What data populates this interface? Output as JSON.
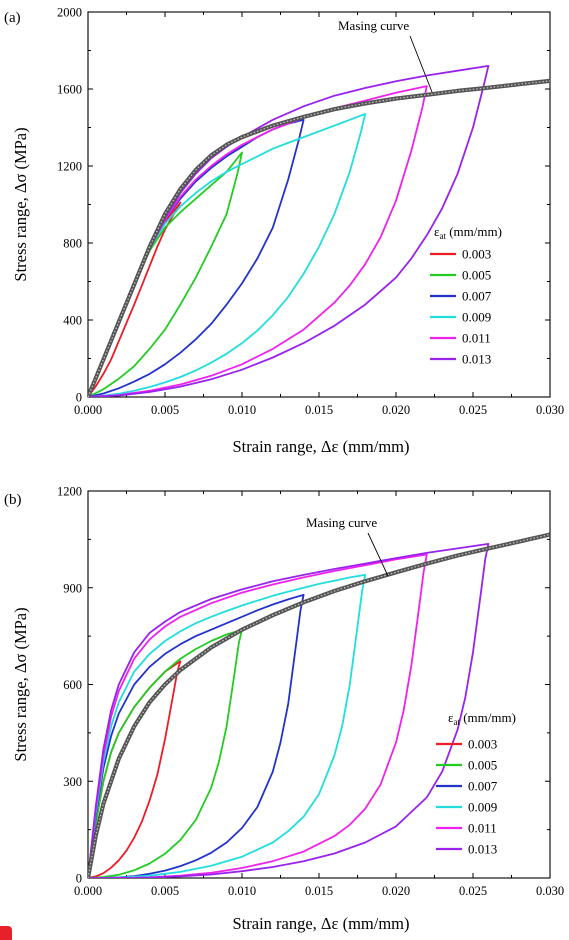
{
  "figure": {
    "marker_color": "#e8202a"
  },
  "chart_data": [
    {
      "type": "line",
      "panel_label": "(a)",
      "xlabel": "Strain range, Δε (mm/mm)",
      "ylabel": "Stress range, Δσ (MPa)",
      "xlim": [
        0,
        0.03
      ],
      "ylim": [
        0,
        2000
      ],
      "xticks": [
        "0.000",
        "0.005",
        "0.010",
        "0.015",
        "0.020",
        "0.025",
        "0.030"
      ],
      "yticks": [
        "0",
        "400",
        "800",
        "1200",
        "1600",
        "2000"
      ],
      "xtick_values": [
        0,
        0.005,
        0.01,
        0.015,
        0.02,
        0.025,
        0.03
      ],
      "ytick_values": [
        0,
        400,
        800,
        1200,
        1600,
        2000
      ],
      "legend_title": "ε",
      "legend_title_sub": "at",
      "legend_title_unit": " (mm/mm)",
      "legend_position": "right",
      "annotation": "Masing curve",
      "masing_curve": {
        "color": "#555555",
        "x": [
          0,
          0.001,
          0.002,
          0.003,
          0.004,
          0.005,
          0.006,
          0.007,
          0.008,
          0.009,
          0.01,
          0.012,
          0.014,
          0.016,
          0.018,
          0.02,
          0.022,
          0.024,
          0.026,
          0.028,
          0.03
        ],
        "y": [
          0,
          195,
          390,
          585,
          780,
          950,
          1080,
          1180,
          1255,
          1310,
          1350,
          1410,
          1455,
          1495,
          1525,
          1550,
          1570,
          1590,
          1607,
          1625,
          1642
        ]
      },
      "series": [
        {
          "name": "0.003",
          "color": "#ee1c24",
          "x": [
            0,
            0.001,
            0.002,
            0.003,
            0.004,
            0.005,
            0.006,
            0.0055,
            0.005,
            0.0045,
            0.004,
            0.0035,
            0.003,
            0.0025,
            0.002,
            0.0015,
            0.001,
            0.0005,
            0
          ],
          "y": [
            0,
            195,
            390,
            585,
            770,
            910,
            1010,
            940,
            870,
            780,
            680,
            580,
            480,
            385,
            290,
            195,
            120,
            55,
            0
          ]
        },
        {
          "name": "0.005",
          "color": "#22cc22",
          "x": [
            0,
            0.001,
            0.002,
            0.003,
            0.004,
            0.005,
            0.006,
            0.007,
            0.008,
            0.009,
            0.01,
            0.0097,
            0.009,
            0.008,
            0.007,
            0.006,
            0.005,
            0.004,
            0.003,
            0.002,
            0.001,
            0
          ],
          "y": [
            0,
            195,
            390,
            580,
            760,
            880,
            960,
            1030,
            1100,
            1170,
            1270,
            1160,
            950,
            780,
            620,
            480,
            350,
            250,
            160,
            95,
            40,
            0
          ]
        },
        {
          "name": "0.007",
          "color": "#2233cc",
          "x": [
            0,
            0.001,
            0.002,
            0.003,
            0.004,
            0.005,
            0.006,
            0.007,
            0.008,
            0.009,
            0.01,
            0.011,
            0.012,
            0.013,
            0.014,
            0.0137,
            0.013,
            0.012,
            0.011,
            0.01,
            0.009,
            0.008,
            0.007,
            0.006,
            0.005,
            0.004,
            0.003,
            0.002,
            0.001,
            0
          ],
          "y": [
            0,
            195,
            390,
            580,
            770,
            920,
            1030,
            1120,
            1190,
            1250,
            1300,
            1350,
            1390,
            1420,
            1440,
            1340,
            1130,
            880,
            720,
            590,
            480,
            380,
            300,
            230,
            170,
            120,
            80,
            45,
            18,
            0
          ]
        },
        {
          "name": "0.009",
          "color": "#22dddd",
          "x": [
            0,
            0.001,
            0.002,
            0.003,
            0.004,
            0.005,
            0.006,
            0.007,
            0.008,
            0.009,
            0.01,
            0.011,
            0.012,
            0.013,
            0.014,
            0.015,
            0.016,
            0.017,
            0.018,
            0.0177,
            0.017,
            0.016,
            0.015,
            0.014,
            0.013,
            0.012,
            0.011,
            0.01,
            0.009,
            0.008,
            0.007,
            0.006,
            0.005,
            0.004,
            0.003,
            0.002,
            0.001,
            0
          ],
          "y": [
            0,
            195,
            390,
            580,
            770,
            900,
            990,
            1060,
            1120,
            1170,
            1210,
            1250,
            1290,
            1320,
            1350,
            1380,
            1410,
            1440,
            1470,
            1370,
            1170,
            950,
            780,
            640,
            520,
            425,
            345,
            280,
            225,
            178,
            138,
            104,
            76,
            52,
            32,
            17,
            6,
            0
          ]
        },
        {
          "name": "0.011",
          "color": "#ee22ee",
          "x": [
            0,
            0.001,
            0.002,
            0.003,
            0.004,
            0.005,
            0.006,
            0.007,
            0.008,
            0.009,
            0.01,
            0.012,
            0.014,
            0.016,
            0.018,
            0.02,
            0.022,
            0.0217,
            0.021,
            0.02,
            0.019,
            0.018,
            0.017,
            0.016,
            0.014,
            0.012,
            0.01,
            0.008,
            0.006,
            0.004,
            0.002,
            0
          ],
          "y": [
            0,
            195,
            390,
            580,
            770,
            920,
            1040,
            1130,
            1200,
            1260,
            1310,
            1390,
            1450,
            1500,
            1540,
            1580,
            1615,
            1500,
            1280,
            1020,
            830,
            690,
            580,
            490,
            350,
            250,
            170,
            110,
            65,
            32,
            10,
            0
          ]
        },
        {
          "name": "0.013",
          "color": "#9922ee",
          "x": [
            0,
            0.001,
            0.002,
            0.003,
            0.004,
            0.005,
            0.006,
            0.007,
            0.008,
            0.009,
            0.01,
            0.012,
            0.014,
            0.016,
            0.018,
            0.02,
            0.022,
            0.024,
            0.026,
            0.0257,
            0.025,
            0.024,
            0.023,
            0.022,
            0.021,
            0.02,
            0.018,
            0.016,
            0.014,
            0.012,
            0.01,
            0.008,
            0.006,
            0.004,
            0.002,
            0
          ],
          "y": [
            0,
            195,
            390,
            580,
            770,
            930,
            1060,
            1160,
            1240,
            1300,
            1350,
            1440,
            1510,
            1565,
            1605,
            1640,
            1670,
            1695,
            1720,
            1620,
            1400,
            1160,
            980,
            840,
            720,
            620,
            480,
            370,
            280,
            205,
            142,
            92,
            54,
            26,
            8,
            0
          ]
        }
      ]
    },
    {
      "type": "line",
      "panel_label": "(b)",
      "xlabel": "Strain range, Δε (mm/mm)",
      "ylabel": "Stress range, Δσ (MPa)",
      "xlim": [
        0,
        0.03
      ],
      "ylim": [
        0,
        1200
      ],
      "xticks": [
        "0.000",
        "0.005",
        "0.010",
        "0.015",
        "0.020",
        "0.025",
        "0.030"
      ],
      "yticks": [
        "0",
        "300",
        "600",
        "900",
        "1200"
      ],
      "xtick_values": [
        0,
        0.005,
        0.01,
        0.015,
        0.02,
        0.025,
        0.03
      ],
      "ytick_values": [
        0,
        300,
        600,
        900,
        1200
      ],
      "legend_title": "ε",
      "legend_title_sub": "at",
      "legend_title_unit": " (mm/mm)",
      "legend_position": "right",
      "annotation": "Masing curve",
      "masing_curve": {
        "color": "#555555",
        "x": [
          0,
          0.0005,
          0.001,
          0.002,
          0.003,
          0.004,
          0.005,
          0.006,
          0.008,
          0.01,
          0.012,
          0.014,
          0.016,
          0.018,
          0.02,
          0.022,
          0.024,
          0.026,
          0.028,
          0.03
        ],
        "y": [
          0,
          130,
          230,
          370,
          470,
          545,
          600,
          645,
          715,
          770,
          815,
          855,
          890,
          920,
          948,
          975,
          1000,
          1022,
          1043,
          1065
        ]
      },
      "series": [
        {
          "name": "0.003",
          "color": "#ee1c24",
          "x": [
            0,
            0.0005,
            0.001,
            0.0015,
            0.002,
            0.003,
            0.004,
            0.005,
            0.006,
            0.0058,
            0.0055,
            0.005,
            0.0045,
            0.004,
            0.0035,
            0.003,
            0.0025,
            0.002,
            0.0015,
            0.001,
            0.0005,
            0
          ],
          "y": [
            0,
            170,
            300,
            390,
            450,
            530,
            590,
            640,
            672,
            640,
            560,
            430,
            320,
            240,
            175,
            125,
            85,
            55,
            32,
            15,
            5,
            0
          ]
        },
        {
          "name": "0.005",
          "color": "#22cc22",
          "x": [
            0,
            0.0005,
            0.001,
            0.0015,
            0.002,
            0.003,
            0.004,
            0.005,
            0.006,
            0.007,
            0.008,
            0.009,
            0.01,
            0.0098,
            0.0095,
            0.009,
            0.0085,
            0.008,
            0.007,
            0.006,
            0.005,
            0.004,
            0.003,
            0.002,
            0.001,
            0
          ],
          "y": [
            0,
            170,
            300,
            390,
            450,
            530,
            590,
            640,
            680,
            710,
            735,
            755,
            770,
            730,
            630,
            470,
            360,
            280,
            180,
            118,
            75,
            45,
            24,
            10,
            3,
            0
          ]
        },
        {
          "name": "0.007",
          "color": "#2233cc",
          "x": [
            0,
            0.0005,
            0.001,
            0.0015,
            0.002,
            0.003,
            0.004,
            0.005,
            0.006,
            0.007,
            0.008,
            0.009,
            0.01,
            0.011,
            0.012,
            0.013,
            0.014,
            0.0138,
            0.0135,
            0.013,
            0.0125,
            0.012,
            0.011,
            0.01,
            0.009,
            0.008,
            0.007,
            0.006,
            0.005,
            0.004,
            0.003,
            0.002,
            0.001,
            0
          ],
          "y": [
            0,
            190,
            340,
            440,
            510,
            600,
            655,
            695,
            725,
            750,
            770,
            790,
            810,
            830,
            848,
            864,
            878,
            830,
            720,
            540,
            420,
            330,
            220,
            155,
            110,
            78,
            55,
            37,
            23,
            13,
            6,
            2,
            0,
            0
          ]
        },
        {
          "name": "0.009",
          "color": "#22dddd",
          "x": [
            0,
            0.0005,
            0.001,
            0.0015,
            0.002,
            0.003,
            0.004,
            0.005,
            0.006,
            0.007,
            0.008,
            0.009,
            0.01,
            0.011,
            0.012,
            0.013,
            0.014,
            0.015,
            0.016,
            0.017,
            0.018,
            0.0178,
            0.0175,
            0.017,
            0.0165,
            0.016,
            0.015,
            0.014,
            0.013,
            0.012,
            0.01,
            0.008,
            0.006,
            0.004,
            0.002,
            0
          ],
          "y": [
            0,
            200,
            360,
            470,
            545,
            640,
            695,
            735,
            765,
            790,
            810,
            828,
            845,
            860,
            875,
            888,
            900,
            912,
            922,
            932,
            940,
            890,
            780,
            600,
            470,
            380,
            260,
            190,
            145,
            110,
            66,
            38,
            19,
            7,
            1,
            0
          ]
        },
        {
          "name": "0.011",
          "color": "#ee22ee",
          "x": [
            0,
            0.0005,
            0.001,
            0.0015,
            0.002,
            0.003,
            0.004,
            0.005,
            0.006,
            0.008,
            0.01,
            0.012,
            0.014,
            0.016,
            0.018,
            0.02,
            0.022,
            0.0218,
            0.0215,
            0.021,
            0.0205,
            0.02,
            0.019,
            0.018,
            0.017,
            0.016,
            0.014,
            0.012,
            0.01,
            0.008,
            0.006,
            0.004,
            0.002,
            0
          ],
          "y": [
            0,
            210,
            380,
            500,
            580,
            680,
            740,
            780,
            810,
            852,
            885,
            910,
            932,
            952,
            970,
            988,
            1003,
            950,
            840,
            660,
            520,
            420,
            290,
            215,
            165,
            130,
            82,
            52,
            31,
            16,
            7,
            2,
            0,
            0
          ]
        },
        {
          "name": "0.013",
          "color": "#9922ee",
          "x": [
            0,
            0.0005,
            0.001,
            0.0015,
            0.002,
            0.003,
            0.004,
            0.005,
            0.006,
            0.008,
            0.01,
            0.012,
            0.014,
            0.016,
            0.018,
            0.02,
            0.022,
            0.024,
            0.026,
            0.0258,
            0.0255,
            0.025,
            0.0245,
            0.024,
            0.023,
            0.022,
            0.02,
            0.018,
            0.016,
            0.014,
            0.012,
            0.01,
            0.008,
            0.006,
            0.004,
            0.002,
            0
          ],
          "y": [
            0,
            220,
            400,
            520,
            600,
            700,
            760,
            795,
            825,
            865,
            895,
            920,
            940,
            958,
            975,
            992,
            1008,
            1022,
            1036,
            990,
            880,
            700,
            560,
            460,
            330,
            250,
            160,
            110,
            76,
            52,
            34,
            21,
            11,
            5,
            1,
            0,
            0
          ]
        }
      ]
    }
  ]
}
